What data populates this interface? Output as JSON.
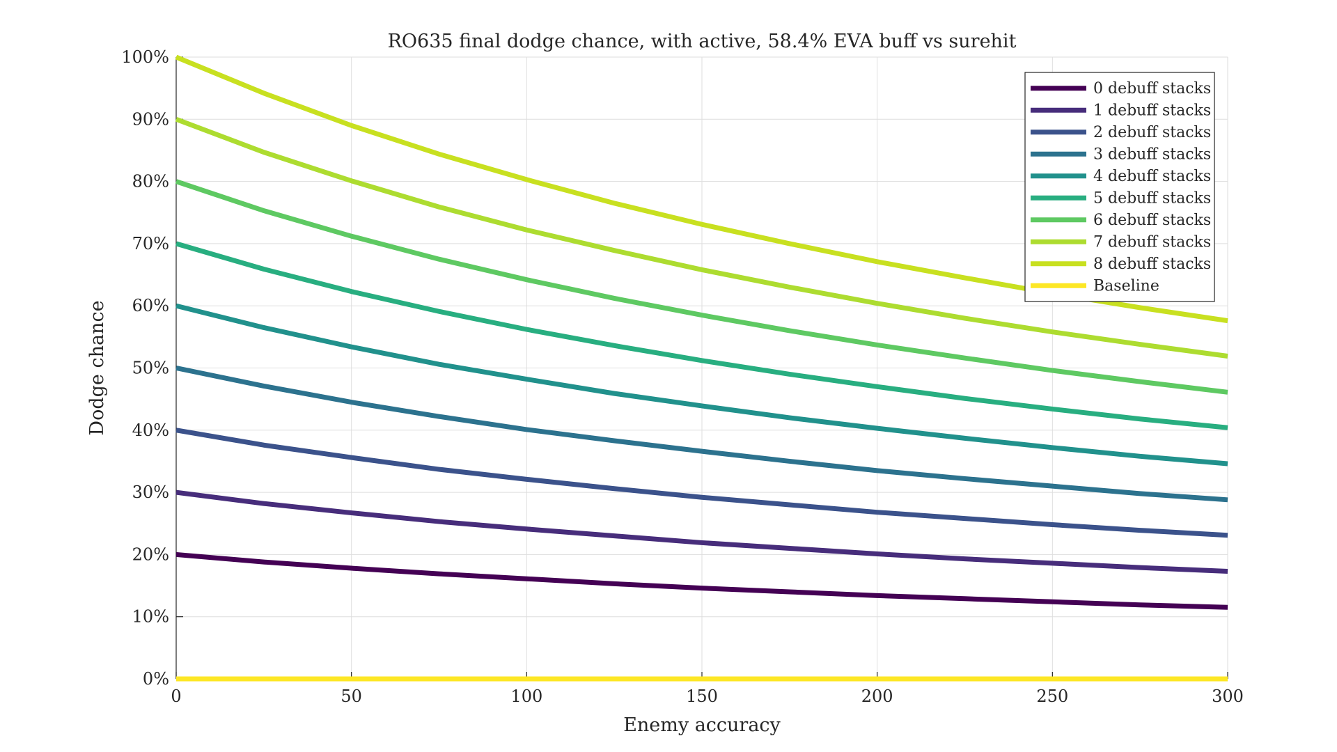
{
  "chart_data": {
    "type": "line",
    "title": "RO635 final dodge chance, with active, 58.4% EVA buff vs surehit",
    "xlabel": "Enemy accuracy",
    "ylabel": "Dodge chance",
    "xlim": [
      0,
      300
    ],
    "ylim": [
      0,
      100
    ],
    "x_ticks": [
      0,
      50,
      100,
      150,
      200,
      250,
      300
    ],
    "y_ticks": [
      0,
      10,
      20,
      30,
      40,
      50,
      60,
      70,
      80,
      90,
      100
    ],
    "x_tick_labels": [
      "0",
      "50",
      "100",
      "150",
      "200",
      "250",
      "300"
    ],
    "y_tick_labels": [
      "0%",
      "10%",
      "20%",
      "30%",
      "40%",
      "50%",
      "60%",
      "70%",
      "80%",
      "90%",
      "100%"
    ],
    "grid": true,
    "legend_position": "top-right",
    "x": [
      0,
      25,
      50,
      75,
      100,
      125,
      150,
      175,
      200,
      225,
      250,
      275,
      300
    ],
    "series": [
      {
        "name": "0 debuff stacks",
        "color": "#440154",
        "values": [
          20.0,
          18.8,
          17.8,
          16.9,
          16.1,
          15.3,
          14.6,
          14.0,
          13.4,
          12.9,
          12.4,
          11.9,
          11.5
        ]
      },
      {
        "name": "1 debuff stacks",
        "color": "#472d7b",
        "values": [
          30.0,
          28.2,
          26.7,
          25.3,
          24.1,
          23.0,
          21.9,
          21.0,
          20.1,
          19.3,
          18.6,
          17.9,
          17.3
        ]
      },
      {
        "name": "2 debuff stacks",
        "color": "#3b528b",
        "values": [
          40.0,
          37.6,
          35.6,
          33.7,
          32.1,
          30.6,
          29.2,
          28.0,
          26.8,
          25.8,
          24.8,
          23.9,
          23.1
        ]
      },
      {
        "name": "3 debuff stacks",
        "color": "#2c728e",
        "values": [
          50.0,
          47.1,
          44.5,
          42.2,
          40.1,
          38.3,
          36.6,
          35.0,
          33.5,
          32.2,
          31.0,
          29.8,
          28.8
        ]
      },
      {
        "name": "4 debuff stacks",
        "color": "#21918c",
        "values": [
          60.0,
          56.5,
          53.4,
          50.6,
          48.2,
          45.9,
          43.9,
          42.0,
          40.3,
          38.7,
          37.2,
          35.8,
          34.6
        ]
      },
      {
        "name": "5 debuff stacks",
        "color": "#28ae80",
        "values": [
          70.0,
          65.9,
          62.3,
          59.1,
          56.2,
          53.6,
          51.2,
          49.0,
          47.0,
          45.1,
          43.4,
          41.8,
          40.4
        ]
      },
      {
        "name": "6 debuff stacks",
        "color": "#5ec962",
        "values": [
          80.0,
          75.3,
          71.2,
          67.5,
          64.2,
          61.2,
          58.5,
          56.0,
          53.7,
          51.6,
          49.6,
          47.8,
          46.1
        ]
      },
      {
        "name": "7 debuff stacks",
        "color": "#addc30",
        "values": [
          90.0,
          84.7,
          80.1,
          75.9,
          72.2,
          68.9,
          65.8,
          63.0,
          60.4,
          58.0,
          55.8,
          53.8,
          51.9
        ]
      },
      {
        "name": "8 debuff stacks",
        "color": "#c8e020",
        "values": [
          100.0,
          94.2,
          89.0,
          84.4,
          80.3,
          76.5,
          73.1,
          70.0,
          67.1,
          64.5,
          62.0,
          59.7,
          57.6
        ]
      },
      {
        "name": "Baseline",
        "color": "#fde725",
        "values": [
          0,
          0,
          0,
          0,
          0,
          0,
          0,
          0,
          0,
          0,
          0,
          0,
          0
        ]
      }
    ]
  }
}
